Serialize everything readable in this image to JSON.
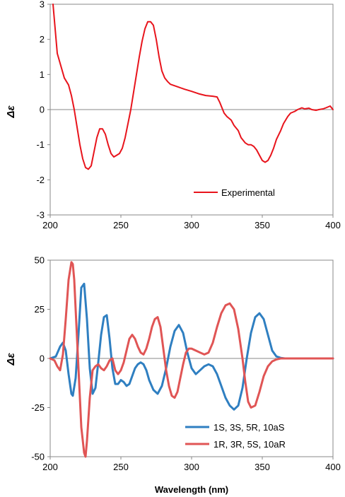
{
  "chart_data": [
    {
      "type": "line",
      "ylabel": "Δε",
      "xlim": [
        200,
        400
      ],
      "ylim": [
        -3,
        3
      ],
      "xticks": [
        200,
        250,
        300,
        350,
        400
      ],
      "yticks": [
        -3,
        -2,
        -1,
        0,
        1,
        2,
        3
      ],
      "xtick_labels": [
        "200",
        "250",
        "300",
        "350",
        "400"
      ],
      "ytick_labels": [
        "-3",
        "-2",
        "-1",
        "0",
        "1",
        "2",
        "3"
      ],
      "legend_position": "bottom-right",
      "series": [
        {
          "name": "Experimental",
          "color": "#e8141c",
          "x": [
            202,
            205,
            210,
            213,
            215,
            217,
            219,
            221,
            223,
            225,
            227,
            229,
            231,
            233,
            235,
            237,
            239,
            241,
            243,
            245,
            247,
            249,
            251,
            253,
            255,
            257,
            259,
            261,
            263,
            265,
            267,
            269,
            271,
            273,
            275,
            277,
            279,
            281,
            283,
            285,
            290,
            295,
            300,
            305,
            310,
            315,
            318,
            320,
            323,
            325,
            328,
            330,
            333,
            335,
            338,
            340,
            342,
            344,
            346,
            348,
            350,
            352,
            354,
            356,
            358,
            360,
            363,
            365,
            368,
            370,
            373,
            375,
            378,
            380,
            383,
            385,
            388,
            390,
            393,
            395,
            398,
            400
          ],
          "values": [
            3.0,
            1.6,
            0.9,
            0.7,
            0.4,
            0.0,
            -0.5,
            -1.0,
            -1.4,
            -1.65,
            -1.7,
            -1.6,
            -1.2,
            -0.8,
            -0.55,
            -0.55,
            -0.7,
            -1.0,
            -1.25,
            -1.35,
            -1.3,
            -1.25,
            -1.1,
            -0.8,
            -0.4,
            0.0,
            0.5,
            1.0,
            1.5,
            1.95,
            2.3,
            2.5,
            2.5,
            2.4,
            2.0,
            1.5,
            1.1,
            0.9,
            0.8,
            0.72,
            0.65,
            0.58,
            0.52,
            0.45,
            0.4,
            0.38,
            0.36,
            0.2,
            -0.1,
            -0.2,
            -0.3,
            -0.45,
            -0.6,
            -0.8,
            -0.95,
            -1.0,
            -1.0,
            -1.05,
            -1.15,
            -1.3,
            -1.45,
            -1.5,
            -1.45,
            -1.3,
            -1.1,
            -0.85,
            -0.6,
            -0.4,
            -0.2,
            -0.1,
            -0.05,
            0.0,
            0.05,
            0.02,
            0.04,
            0.0,
            -0.02,
            0.0,
            0.02,
            0.05,
            0.1,
            0.0
          ]
        }
      ]
    },
    {
      "type": "line",
      "xlabel": "Wavelength  (nm)",
      "ylabel": "Δε",
      "xlim": [
        200,
        400
      ],
      "ylim": [
        -50,
        50
      ],
      "xticks": [
        200,
        250,
        300,
        350,
        400
      ],
      "yticks": [
        -50,
        -25,
        0,
        25,
        50
      ],
      "xtick_labels": [
        "200",
        "250",
        "300",
        "350",
        "400"
      ],
      "ytick_labels": [
        "-50",
        "-25",
        "0",
        "25",
        "50"
      ],
      "legend_position": "bottom-right",
      "series": [
        {
          "name": "1S, 3S, 5R, 10aS",
          "color": "#2f7fc1",
          "x": [
            200,
            204,
            207,
            209,
            211,
            213,
            215,
            216,
            218,
            220,
            222,
            224,
            226,
            228,
            230,
            232,
            234,
            236,
            238,
            240,
            242,
            244,
            246,
            248,
            250,
            252,
            254,
            256,
            258,
            260,
            262,
            264,
            266,
            268,
            270,
            273,
            276,
            279,
            282,
            285,
            288,
            291,
            294,
            297,
            300,
            303,
            306,
            309,
            312,
            315,
            318,
            321,
            324,
            327,
            330,
            333,
            336,
            339,
            342,
            345,
            348,
            351,
            354,
            357,
            360,
            363,
            366,
            370,
            380,
            390,
            400
          ],
          "values": [
            0,
            1,
            6,
            8,
            4,
            -8,
            -18,
            -19,
            -10,
            12,
            36,
            38,
            20,
            -5,
            -18,
            -15,
            -2,
            12,
            21,
            22,
            10,
            -5,
            -13,
            -13,
            -11,
            -12,
            -14,
            -13,
            -9,
            -5,
            -3,
            -2,
            -3,
            -6,
            -11,
            -16,
            -18,
            -14,
            -5,
            6,
            14,
            17,
            13,
            3,
            -5,
            -8,
            -6,
            -4,
            -3,
            -4,
            -8,
            -14,
            -20,
            -24,
            -26,
            -24,
            -15,
            0,
            13,
            21,
            23,
            20,
            12,
            4,
            1,
            0.3,
            0,
            0,
            0,
            0,
            0
          ],
          "points_are": "estimated"
        },
        {
          "name": "1R, 3R, 5S, 10aR",
          "color": "#e05555",
          "x": [
            200,
            203,
            205,
            207,
            209,
            211,
            213,
            215,
            216,
            217,
            218,
            220,
            222,
            224,
            225,
            226,
            228,
            230,
            232,
            234,
            236,
            238,
            240,
            242,
            244,
            246,
            248,
            250,
            252,
            254,
            256,
            258,
            260,
            262,
            264,
            266,
            268,
            270,
            272,
            274,
            276,
            278,
            280,
            282,
            284,
            286,
            288,
            290,
            292,
            294,
            296,
            298,
            300,
            303,
            306,
            309,
            312,
            315,
            318,
            321,
            324,
            327,
            330,
            333,
            336,
            338,
            340,
            342,
            345,
            348,
            351,
            354,
            357,
            360,
            363,
            366,
            370,
            380,
            390,
            400
          ],
          "values": [
            0,
            -1,
            -4,
            -6,
            2,
            20,
            40,
            49,
            48,
            40,
            25,
            -5,
            -35,
            -48,
            -50,
            -42,
            -20,
            -6,
            -4,
            -3,
            -5,
            -6,
            -4,
            -1,
            0,
            -6,
            -8,
            -6,
            -2,
            4,
            10,
            12,
            10,
            6,
            3,
            2,
            5,
            10,
            16,
            20,
            21,
            16,
            5,
            -6,
            -14,
            -19,
            -20,
            -17,
            -10,
            -3,
            3,
            5,
            5,
            4,
            3,
            2,
            3,
            8,
            16,
            23,
            27,
            28,
            25,
            15,
            0,
            -12,
            -22,
            -25,
            -24,
            -17,
            -9,
            -4,
            -1.5,
            -0.5,
            0,
            0,
            0,
            0,
            0,
            0
          ],
          "points_are": "estimated"
        }
      ]
    }
  ]
}
